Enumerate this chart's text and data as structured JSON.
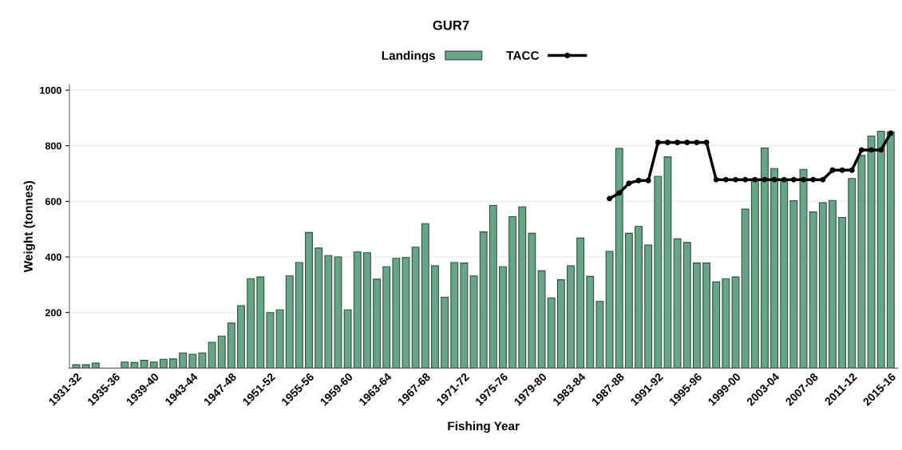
{
  "chart_data": {
    "type": "bar",
    "title": "GUR7",
    "xlabel": "Fishing Year",
    "ylabel": "Weight (tonnes)",
    "categories": [
      "1931-32",
      null,
      null,
      null,
      "1935-36",
      null,
      null,
      null,
      "1939-40",
      null,
      null,
      null,
      "1943-44",
      null,
      null,
      null,
      "1947-48",
      null,
      null,
      null,
      "1951-52",
      null,
      null,
      null,
      "1955-56",
      null,
      null,
      null,
      "1959-60",
      null,
      null,
      null,
      "1963-64",
      null,
      null,
      null,
      "1967-68",
      null,
      null,
      null,
      "1971-72",
      null,
      null,
      null,
      "1975-76",
      null,
      null,
      null,
      "1979-80",
      null,
      null,
      null,
      "1983-84",
      null,
      null,
      null,
      "1987-88",
      null,
      null,
      null,
      "1991-92",
      null,
      null,
      null,
      "1995-96",
      null,
      null,
      null,
      "1999-00",
      null,
      null,
      null,
      "2003-04",
      null,
      null,
      null,
      "2007-08",
      null,
      null,
      null,
      "2011-12",
      null,
      null,
      null,
      "2015-16"
    ],
    "series": [
      {
        "name": "Landings",
        "color": "#68a587",
        "values": [
          12,
          12,
          18,
          null,
          null,
          22,
          20,
          28,
          22,
          32,
          33,
          55,
          50,
          55,
          93,
          115,
          162,
          225,
          322,
          328,
          200,
          210,
          332,
          380,
          488,
          432,
          405,
          400,
          210,
          418,
          415,
          320,
          365,
          395,
          398,
          435,
          520,
          368,
          255,
          380,
          378,
          332,
          490,
          585,
          365,
          545,
          580,
          485,
          350,
          252,
          318,
          368,
          468,
          330,
          240,
          420,
          790,
          485,
          510,
          443,
          690,
          760,
          465,
          452,
          378,
          378,
          310,
          322,
          328,
          572,
          680,
          792,
          718,
          680,
          602,
          715,
          562,
          595,
          603,
          542,
          682,
          765,
          835,
          852,
          850
        ]
      },
      {
        "name": "TACC",
        "type": "line",
        "color": "#000000",
        "marker": "circle",
        "line_style": "solid",
        "values": [
          null,
          null,
          null,
          null,
          null,
          null,
          null,
          null,
          null,
          null,
          null,
          null,
          null,
          null,
          null,
          null,
          null,
          null,
          null,
          null,
          null,
          null,
          null,
          null,
          null,
          null,
          null,
          null,
          null,
          null,
          null,
          null,
          null,
          null,
          null,
          null,
          null,
          null,
          null,
          null,
          null,
          null,
          null,
          null,
          null,
          null,
          null,
          null,
          null,
          null,
          null,
          null,
          null,
          null,
          null,
          610,
          630,
          665,
          675,
          675,
          812,
          812,
          812,
          812,
          812,
          812,
          678,
          678,
          678,
          678,
          678,
          678,
          678,
          678,
          678,
          678,
          678,
          678,
          712,
          712,
          712,
          785,
          785,
          785,
          845
        ]
      }
    ],
    "ylim": [
      0,
      1020
    ],
    "yticks": [
      200,
      400,
      600,
      800,
      1000
    ],
    "grid": "y",
    "legend": "top"
  }
}
